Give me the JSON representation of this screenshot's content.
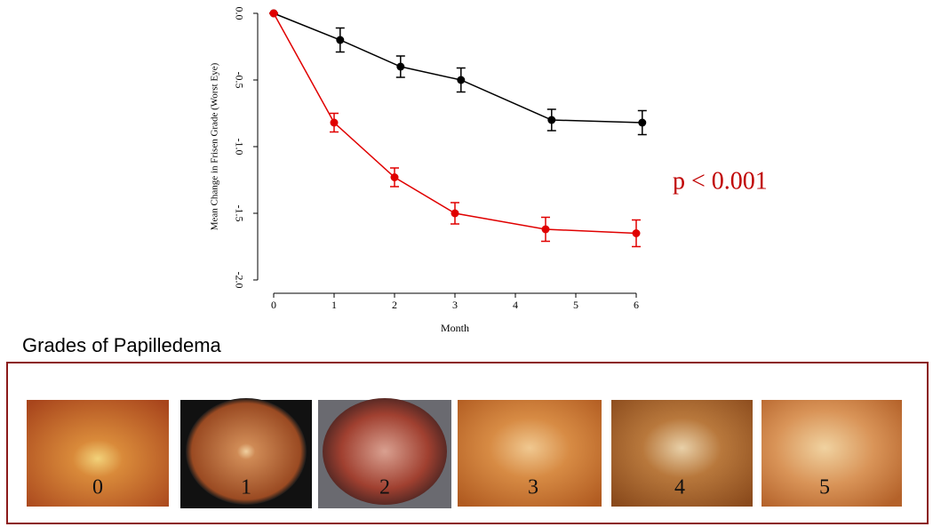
{
  "chart_data": {
    "type": "line",
    "xlabel": "Month",
    "ylabel": "Mean Change in Frisen Grade (Worst Eye)",
    "annotation": "p < 0.001",
    "annotation_color": "#c00000",
    "xlim": [
      0,
      6
    ],
    "xticks": [
      0,
      1,
      2,
      3,
      4,
      5,
      6
    ],
    "ylim": [
      -2,
      0
    ],
    "yticks": [
      {
        "value": 0,
        "label": "0.0"
      },
      {
        "value": -0.5,
        "label": "-0.5"
      },
      {
        "value": -1,
        "label": "-1.0"
      },
      {
        "value": -1.5,
        "label": "-1.5"
      },
      {
        "value": -2,
        "label": "-2.0"
      }
    ],
    "series": [
      {
        "color": "#000000",
        "x": [
          0,
          1.1,
          2.1,
          3.1,
          4.6,
          6.1
        ],
        "values": [
          0,
          -0.2,
          -0.4,
          -0.5,
          -0.8,
          -0.82
        ],
        "errors": [
          0,
          0.09,
          0.08,
          0.09,
          0.08,
          0.09
        ]
      },
      {
        "color": "#e00000",
        "x": [
          0,
          1,
          2,
          3,
          4.5,
          6
        ],
        "values": [
          0,
          -0.82,
          -1.23,
          -1.5,
          -1.62,
          -1.65
        ],
        "errors": [
          0,
          0.07,
          0.07,
          0.08,
          0.09,
          0.1
        ]
      }
    ]
  },
  "panel": {
    "title": "Grades of Papilledema",
    "labels": [
      "0",
      "1",
      "2",
      "3",
      "4",
      "5"
    ]
  }
}
